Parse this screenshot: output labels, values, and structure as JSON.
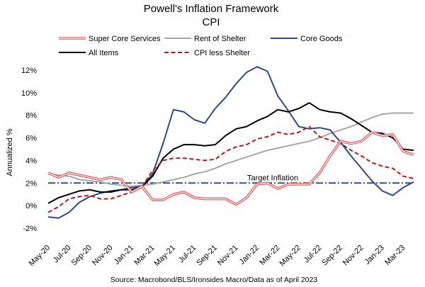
{
  "chart_data": {
    "type": "line",
    "title": "Powell's Inflation Framework",
    "subtitle": "CPI",
    "ylabel": "Annualized %",
    "source": "Source: Macrobond/BLS/Ironsides Macro/Data as of April 2023",
    "ylim": [
      -2,
      13
    ],
    "yticks": [
      -2,
      0,
      2,
      4,
      6,
      8,
      10,
      12
    ],
    "ytick_labels": [
      "-2%",
      "0%",
      "2%",
      "4%",
      "6%",
      "8%",
      "10%",
      "12%"
    ],
    "x": [
      "May-20",
      "Jun-20",
      "Jul-20",
      "Aug-20",
      "Sep-20",
      "Oct-20",
      "Nov-20",
      "Dec-20",
      "Jan-21",
      "Feb-21",
      "Mar-21",
      "Apr-21",
      "May-21",
      "Jun-21",
      "Jul-21",
      "Aug-21",
      "Sep-21",
      "Oct-21",
      "Nov-21",
      "Dec-21",
      "Jan-22",
      "Feb-22",
      "Mar-22",
      "Apr-22",
      "May-22",
      "Jun-22",
      "Jul-22",
      "Aug-22",
      "Sep-22",
      "Oct-22",
      "Nov-22",
      "Dec-22",
      "Jan-23",
      "Feb-23",
      "Mar-23",
      "Apr-23"
    ],
    "xtick_labels": [
      "May-20",
      "Jul-20",
      "Sep-20",
      "Nov-20",
      "Jan-21",
      "Mar-21",
      "May-21",
      "Jul-21",
      "Sep-21",
      "Nov-21",
      "Jan-22",
      "Mar-22",
      "May-22",
      "Jul-22",
      "Sep-22",
      "Nov-22",
      "Jan-23",
      "Mar-23"
    ],
    "grid": false,
    "legend_position": "top",
    "annotation": "Target Inflation",
    "target_level": 2.0,
    "series": [
      {
        "name": "Super Core Services",
        "color": "#e05555",
        "style": "double",
        "values": [
          2.9,
          2.5,
          2.9,
          2.7,
          2.5,
          2.3,
          2.5,
          2.3,
          1.2,
          1.7,
          0.5,
          0.5,
          1.0,
          1.2,
          0.7,
          0.6,
          0.6,
          0.6,
          0.1,
          0.7,
          1.9,
          2.0,
          1.5,
          1.9,
          1.9,
          1.9,
          2.9,
          4.4,
          5.7,
          5.5,
          5.7,
          6.5,
          6.2,
          6.3,
          4.8,
          4.5
        ]
      },
      {
        "name": "Rent of Shelter",
        "color": "#a6a6a6",
        "style": "solid",
        "values": [
          2.8,
          2.7,
          2.6,
          2.3,
          2.2,
          2.1,
          1.9,
          1.8,
          1.7,
          1.8,
          1.9,
          2.1,
          2.3,
          2.5,
          2.8,
          3.0,
          3.3,
          3.7,
          4.0,
          4.3,
          4.6,
          4.9,
          5.1,
          5.3,
          5.5,
          5.7,
          6.0,
          6.4,
          6.7,
          7.0,
          7.4,
          7.8,
          8.1,
          8.2,
          8.2,
          8.2
        ]
      },
      {
        "name": "Core Goods",
        "color": "#2e4a85",
        "style": "solid",
        "values": [
          -1.0,
          -1.1,
          -0.6,
          0.3,
          0.8,
          1.1,
          1.3,
          1.4,
          1.6,
          1.7,
          2.8,
          5.5,
          8.5,
          8.3,
          7.6,
          7.3,
          8.6,
          9.6,
          10.8,
          11.8,
          12.3,
          11.9,
          9.7,
          8.4,
          7.0,
          6.8,
          6.9,
          6.7,
          5.6,
          4.4,
          3.3,
          2.2,
          1.3,
          0.9,
          1.6,
          2.1
        ]
      },
      {
        "name": "All Items",
        "color": "#000000",
        "style": "solid",
        "values": [
          0.2,
          0.7,
          1.0,
          1.3,
          1.4,
          1.2,
          1.2,
          1.4,
          1.4,
          1.7,
          2.6,
          4.2,
          5.0,
          5.4,
          5.4,
          5.3,
          5.4,
          6.2,
          6.8,
          7.0,
          7.5,
          7.9,
          8.5,
          8.3,
          8.6,
          9.1,
          8.5,
          8.3,
          8.2,
          7.7,
          7.1,
          6.5,
          6.4,
          6.0,
          5.0,
          4.9
        ]
      },
      {
        "name": "CPI less Shelter",
        "color": "#b01c1c",
        "style": "dashed",
        "values": [
          -0.6,
          -0.1,
          0.6,
          0.8,
          0.9,
          0.6,
          0.6,
          0.9,
          1.2,
          1.7,
          3.1,
          4.0,
          4.2,
          4.2,
          4.1,
          4.0,
          4.1,
          4.8,
          5.2,
          5.4,
          5.9,
          6.1,
          6.5,
          6.3,
          6.5,
          7.0,
          6.1,
          5.8,
          5.5,
          4.9,
          4.4,
          3.8,
          3.5,
          3.3,
          2.6,
          2.4
        ]
      }
    ]
  }
}
